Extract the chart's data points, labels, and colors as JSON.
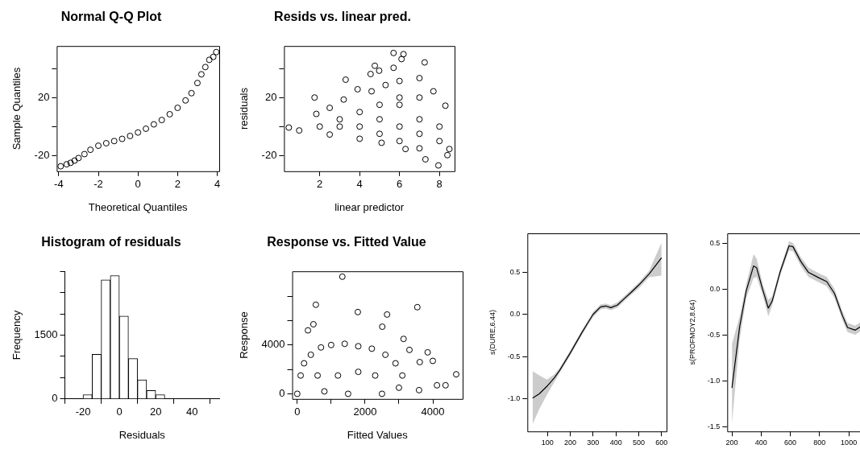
{
  "chart_data": [
    {
      "type": "scatter",
      "title": "Normal Q-Q Plot",
      "xlabel": "Theoretical Quantiles",
      "ylabel": "Sample Quantiles",
      "marker": "circle",
      "xlim": [
        -4.1,
        4.1
      ],
      "ylim": [
        -30.8,
        55.5
      ],
      "xticks": [
        -4,
        -2,
        0,
        2,
        4
      ],
      "yticks": [
        -20,
        {
          "value": 0,
          "label": null
        },
        20,
        {
          "value": 40,
          "label": null
        }
      ],
      "series": [
        {
          "color": "#000000",
          "x": [
            -3.9,
            -3.6,
            -3.4,
            -3.2,
            -3,
            -2.7,
            -2.4,
            -2,
            -1.6,
            -1.2,
            -0.8,
            -0.4,
            0,
            0.4,
            0.8,
            1.2,
            1.6,
            2,
            2.4,
            2.7,
            3,
            3.2,
            3.4,
            3.6,
            3.8,
            3.95
          ],
          "values": [
            -27.4,
            -26,
            -25,
            -23.5,
            -21.7,
            -19,
            -16,
            -13.2,
            -11.5,
            -10,
            -8.5,
            -6.5,
            -4.1,
            -1.5,
            1.5,
            4.5,
            8.5,
            12.9,
            18,
            23,
            30,
            36,
            41,
            46,
            48,
            51.3
          ]
        }
      ]
    },
    {
      "type": "scatter",
      "title": "Resids vs. linear pred.",
      "xlabel": "linear predictor",
      "ylabel": "residuals",
      "marker": "circle",
      "xlim": [
        0.21,
        8.76
      ],
      "ylim": [
        -30.8,
        55.5
      ],
      "xticks": [
        2,
        4,
        6,
        8
      ],
      "yticks": [
        -20,
        {
          "value": 0,
          "label": null
        },
        20,
        {
          "value": 40,
          "label": null
        }
      ],
      "series": [
        {
          "color": "#000000",
          "x": [
            0.45,
            0.97,
            2.5,
            4,
            5.1,
            6.3,
            7.3,
            7.95,
            8.4,
            8.5,
            8.3,
            7.7,
            7,
            6,
            5.3,
            4.6,
            3.9,
            3.2,
            2.5,
            1.83,
            1.74,
            3.3,
            4.55,
            4.76,
            4.98,
            5.7,
            6.2,
            6.1,
            7.26,
            5.7,
            2,
            3,
            4,
            5,
            6,
            7,
            4,
            5,
            6,
            6,
            7,
            7,
            5,
            6,
            7,
            8,
            8,
            3
          ],
          "values": [
            -0.7,
            -2.7,
            -5.5,
            -8.4,
            -11.2,
            -15.5,
            -22.6,
            -26.8,
            -19.7,
            -15.5,
            14.4,
            24.3,
            33.4,
            31.4,
            28.6,
            24.3,
            25.7,
            18.6,
            12.9,
            8.7,
            20,
            32.3,
            36.2,
            41.9,
            38.5,
            50.7,
            49.9,
            46.5,
            44.2,
            40.5,
            0,
            5,
            0,
            5,
            0,
            5,
            10,
            15,
            15,
            20,
            20,
            -5,
            -5,
            -10,
            -15,
            0,
            -10,
            0
          ]
        }
      ]
    },
    {
      "type": "histogram",
      "title": "Histogram of residuals",
      "xlabel": "Residuals",
      "ylabel": "Frequency",
      "color": "#ffffff",
      "xlim": [
        -30,
        55
      ],
      "ylim": [
        0,
        3000
      ],
      "xticks": [
        -20,
        0,
        20,
        40
      ],
      "yticks": [
        0,
        {
          "value": 500,
          "label": null
        },
        {
          "value": 1000,
          "label": null
        },
        1500,
        {
          "value": 2000,
          "label": null
        },
        {
          "value": 2500,
          "label": null
        },
        {
          "value": 3000,
          "label": null
        }
      ],
      "bins": [
        -30,
        -25,
        -20,
        -15,
        -10,
        -5,
        0,
        5,
        10,
        15,
        20,
        25,
        30,
        35,
        40,
        45,
        50,
        55
      ],
      "values": [
        0,
        0,
        100,
        1050,
        2800,
        2900,
        1950,
        950,
        450,
        200,
        100,
        0,
        0,
        0,
        0,
        0,
        0
      ]
    },
    {
      "type": "scatter",
      "title": "Response vs. Fitted Value",
      "xlabel": "Fitted Values",
      "ylabel": "Response",
      "marker": "circle",
      "xlim": [
        -150,
        4880
      ],
      "ylim": [
        -420,
        10040
      ],
      "xticks": [
        0,
        {
          "value": 1000,
          "label": null
        },
        2000,
        {
          "value": 3000,
          "label": null
        },
        4000
      ],
      "yticks": [
        0,
        {
          "value": 2000,
          "label": null
        },
        4000,
        {
          "value": 6000,
          "label": null
        },
        {
          "value": 8000,
          "label": null
        }
      ],
      "series": [
        {
          "color": "#000000",
          "x": [
            1330,
            548,
            3543,
            1787,
            2650,
            2508,
            477,
            315,
            3137,
            3310,
            3848,
            4000,
            3614,
            4690,
            4122,
            4376,
            3594,
            0,
            100,
            200,
            400,
            700,
            1000,
            1400,
            1800,
            2200,
            2600,
            2900,
            3100,
            3000,
            2500,
            1500,
            800,
            1200,
            1800,
            600,
            2300
          ],
          "values": [
            9600,
            7300,
            7100,
            6700,
            6500,
            5500,
            5700,
            5200,
            4500,
            3600,
            3400,
            2700,
            2600,
            1600,
            700,
            700,
            300,
            0,
            1500,
            2500,
            3200,
            3800,
            4000,
            4100,
            3900,
            3700,
            3200,
            2500,
            1500,
            500,
            0,
            0,
            200,
            1500,
            1800,
            1500,
            1500
          ]
        }
      ]
    },
    {
      "type": "line",
      "ylabel": "s(DURE,6.44)",
      "xlim": [
        12,
        622
      ],
      "ylim": [
        -1.385,
        0.96
      ],
      "xticks": [
        100,
        200,
        300,
        400,
        500,
        600
      ],
      "yticks": [
        {
          "value": -1,
          "label": "-1.0"
        },
        -0.5,
        {
          "value": 0,
          "label": "0.0"
        },
        0.5
      ],
      "series": [
        {
          "color": "#000000",
          "x": [
            35,
            64,
            98,
            130,
            154,
            199,
            250,
            277,
            300,
            333,
            356,
            378,
            406,
            434,
            470,
            501,
            546,
            600
          ],
          "values": [
            -0.99,
            -0.94,
            -0.85,
            -0.75,
            -0.66,
            -0.46,
            -0.22,
            -0.1,
            0,
            0.09,
            0.1,
            0.08,
            0.11,
            0.18,
            0.27,
            0.35,
            0.48,
            0.67
          ],
          "lower": [
            -1.3,
            -1.12,
            -0.95,
            -0.8,
            -0.69,
            -0.49,
            -0.25,
            -0.13,
            -0.03,
            0.06,
            0.07,
            0.05,
            0.08,
            0.15,
            0.24,
            0.31,
            0.44,
            0.46
          ],
          "upper": [
            -0.67,
            -0.72,
            -0.77,
            -0.71,
            -0.63,
            -0.43,
            -0.19,
            -0.07,
            0.03,
            0.12,
            0.13,
            0.11,
            0.14,
            0.21,
            0.3,
            0.38,
            0.52,
            0.85
          ]
        }
      ]
    },
    {
      "type": "line",
      "ylabel": "s(PROFMOY2,8.64)",
      "xlim": [
        168,
        1082
      ],
      "ylim": [
        -1.554,
        0.606
      ],
      "xticks": [
        200,
        400,
        600,
        800,
        1000
      ],
      "yticks": [
        -1.5,
        {
          "value": -1,
          "label": "-1.0"
        },
        -0.5,
        {
          "value": 0,
          "label": "0.0"
        },
        0.5
      ],
      "series": [
        {
          "color": "#000000",
          "x": [
            200,
            253,
            298,
            348,
            369,
            413,
            449,
            476,
            529,
            591,
            618,
            671,
            724,
            796,
            849,
            902,
            956,
            991,
            1044,
            1082
          ],
          "values": [
            -1.08,
            -0.41,
            -0.02,
            0.25,
            0.23,
            -0.02,
            -0.21,
            -0.13,
            0.18,
            0.47,
            0.46,
            0.3,
            0.18,
            0.12,
            0.08,
            -0.05,
            -0.29,
            -0.42,
            -0.45,
            -0.41
          ],
          "lower": [
            -1.47,
            -0.55,
            -0.1,
            0.12,
            0.13,
            -0.08,
            -0.3,
            -0.18,
            0.14,
            0.42,
            0.41,
            0.25,
            0.13,
            0.07,
            0.03,
            -0.1,
            -0.34,
            -0.47,
            -0.5,
            -0.46
          ],
          "upper": [
            -0.6,
            -0.3,
            0.05,
            0.38,
            0.33,
            0.04,
            -0.12,
            -0.08,
            0.22,
            0.52,
            0.5,
            0.35,
            0.23,
            0.17,
            0.13,
            0,
            -0.24,
            -0.37,
            -0.4,
            -0.36
          ]
        }
      ]
    }
  ]
}
